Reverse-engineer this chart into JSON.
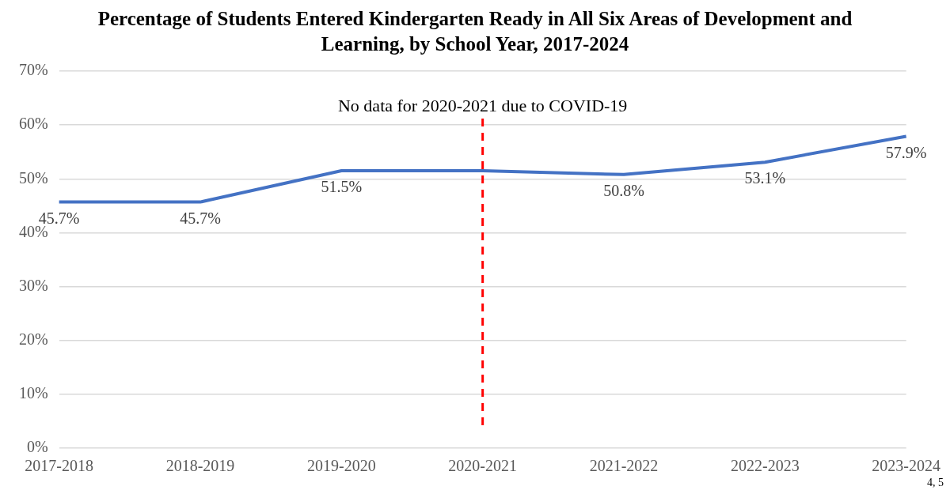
{
  "chart_data": {
    "type": "line",
    "title": "Percentage of Students Entered Kindergarten Ready in All Six Areas of Development and Learning, by School Year, 2017-2024",
    "categories": [
      "2017-2018",
      "2018-2019",
      "2019-2020",
      "2020-2021",
      "2021-2022",
      "2022-2023",
      "2023-2024"
    ],
    "series": [
      {
        "color": "#4472c4",
        "values": [
          45.7,
          45.7,
          51.5,
          51.5,
          50.8,
          53.1,
          57.9
        ],
        "value_labels": [
          "45.7%",
          "45.7%",
          "51.5%",
          null,
          "50.8%",
          "53.1%",
          "57.9%"
        ]
      }
    ],
    "ylim": [
      0,
      70
    ],
    "yticks": [
      {
        "value": 0,
        "label": "0%"
      },
      {
        "value": 10,
        "label": "10%"
      },
      {
        "value": 20,
        "label": "20%"
      },
      {
        "value": 30,
        "label": "30%"
      },
      {
        "value": 40,
        "label": "40%"
      },
      {
        "value": 50,
        "label": "50%"
      },
      {
        "value": 60,
        "label": "60%"
      },
      {
        "value": 70,
        "label": "70%"
      }
    ],
    "grid": "y",
    "legend": false,
    "marker": "none",
    "line_style": "solid",
    "ref_lines": [
      {
        "axis": "x",
        "value": "2020-2021",
        "label": "No data for 2020-2021 due to COVID-19",
        "color": "#ff0000",
        "line_style": "dashed"
      }
    ],
    "annotations": [
      "4, 5"
    ]
  }
}
